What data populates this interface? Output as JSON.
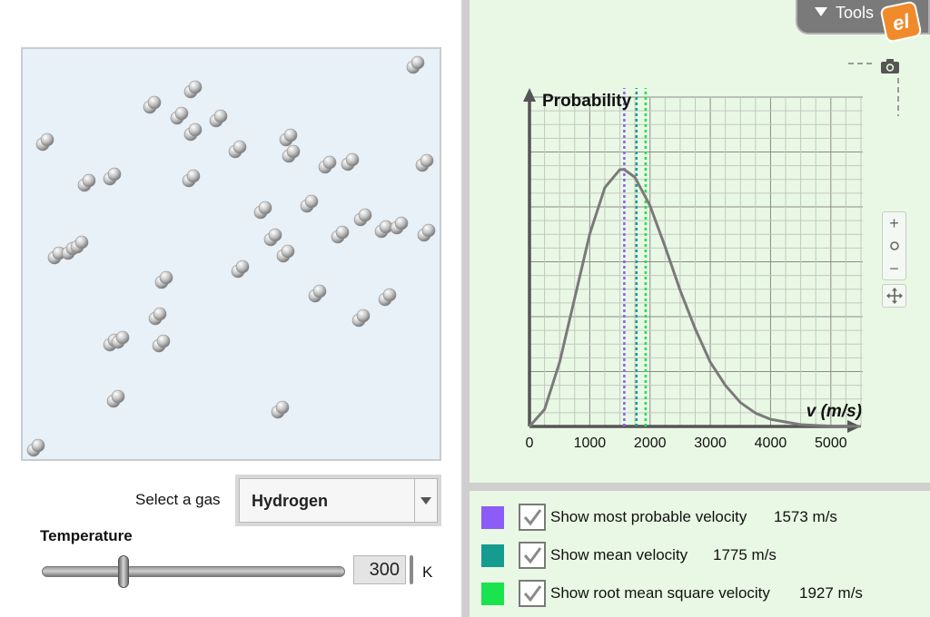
{
  "gas_selector": {
    "label": "Select a gas",
    "value": "Hydrogen"
  },
  "temperature": {
    "label": "Temperature",
    "value": "300",
    "unit": "K",
    "slider_fraction": 0.27
  },
  "tools": {
    "label": "Tools",
    "logo_text": "el"
  },
  "icons": {
    "tools_toggle": "triangle-down-icon",
    "camera": "camera-icon",
    "zoom_in": "plus-icon",
    "zoom_reset": "circle-icon",
    "zoom_out": "minus-icon",
    "pan": "move-arrows-icon",
    "checkbox": "check-icon"
  },
  "chart_data": {
    "type": "line",
    "ylabel": "Probability",
    "xlabel": "v (m/s)",
    "x_ticks": [
      "0",
      "1000",
      "2000",
      "3000",
      "4000",
      "5000"
    ],
    "xlim": [
      0,
      5500
    ],
    "ylim": [
      0,
      1.3
    ],
    "grid": true,
    "series": [
      {
        "x": [
          0,
          250,
          500,
          750,
          1000,
          1250,
          1500,
          1573,
          1750,
          2000,
          2250,
          2500,
          2750,
          3000,
          3250,
          3500,
          3750,
          4000,
          4500,
          5000,
          5500
        ],
        "y": [
          0,
          0.066,
          0.25,
          0.5,
          0.75,
          0.93,
          1.0,
          1.0,
          0.97,
          0.86,
          0.7,
          0.53,
          0.38,
          0.25,
          0.16,
          0.093,
          0.052,
          0.028,
          0.007,
          0.0015,
          0.0003
        ]
      }
    ],
    "markers": [
      {
        "x": 1573,
        "color": "#8b5cf6"
      },
      {
        "x": 1775,
        "color": "#149c8e"
      },
      {
        "x": 1927,
        "color": "#19e34d"
      }
    ],
    "curve_color": "#7a7a7a"
  },
  "legend": [
    {
      "label": "Show most probable velocity",
      "value": "1573 m/s",
      "color": "#8b5cf6",
      "checked": true
    },
    {
      "label": "Show mean velocity",
      "value": "1775 m/s",
      "color": "#149c8e",
      "checked": true
    },
    {
      "label": "Show root mean square velocity",
      "value": "1927 m/s",
      "color": "#19e34d",
      "checked": true
    }
  ],
  "molecule_count": 50
}
